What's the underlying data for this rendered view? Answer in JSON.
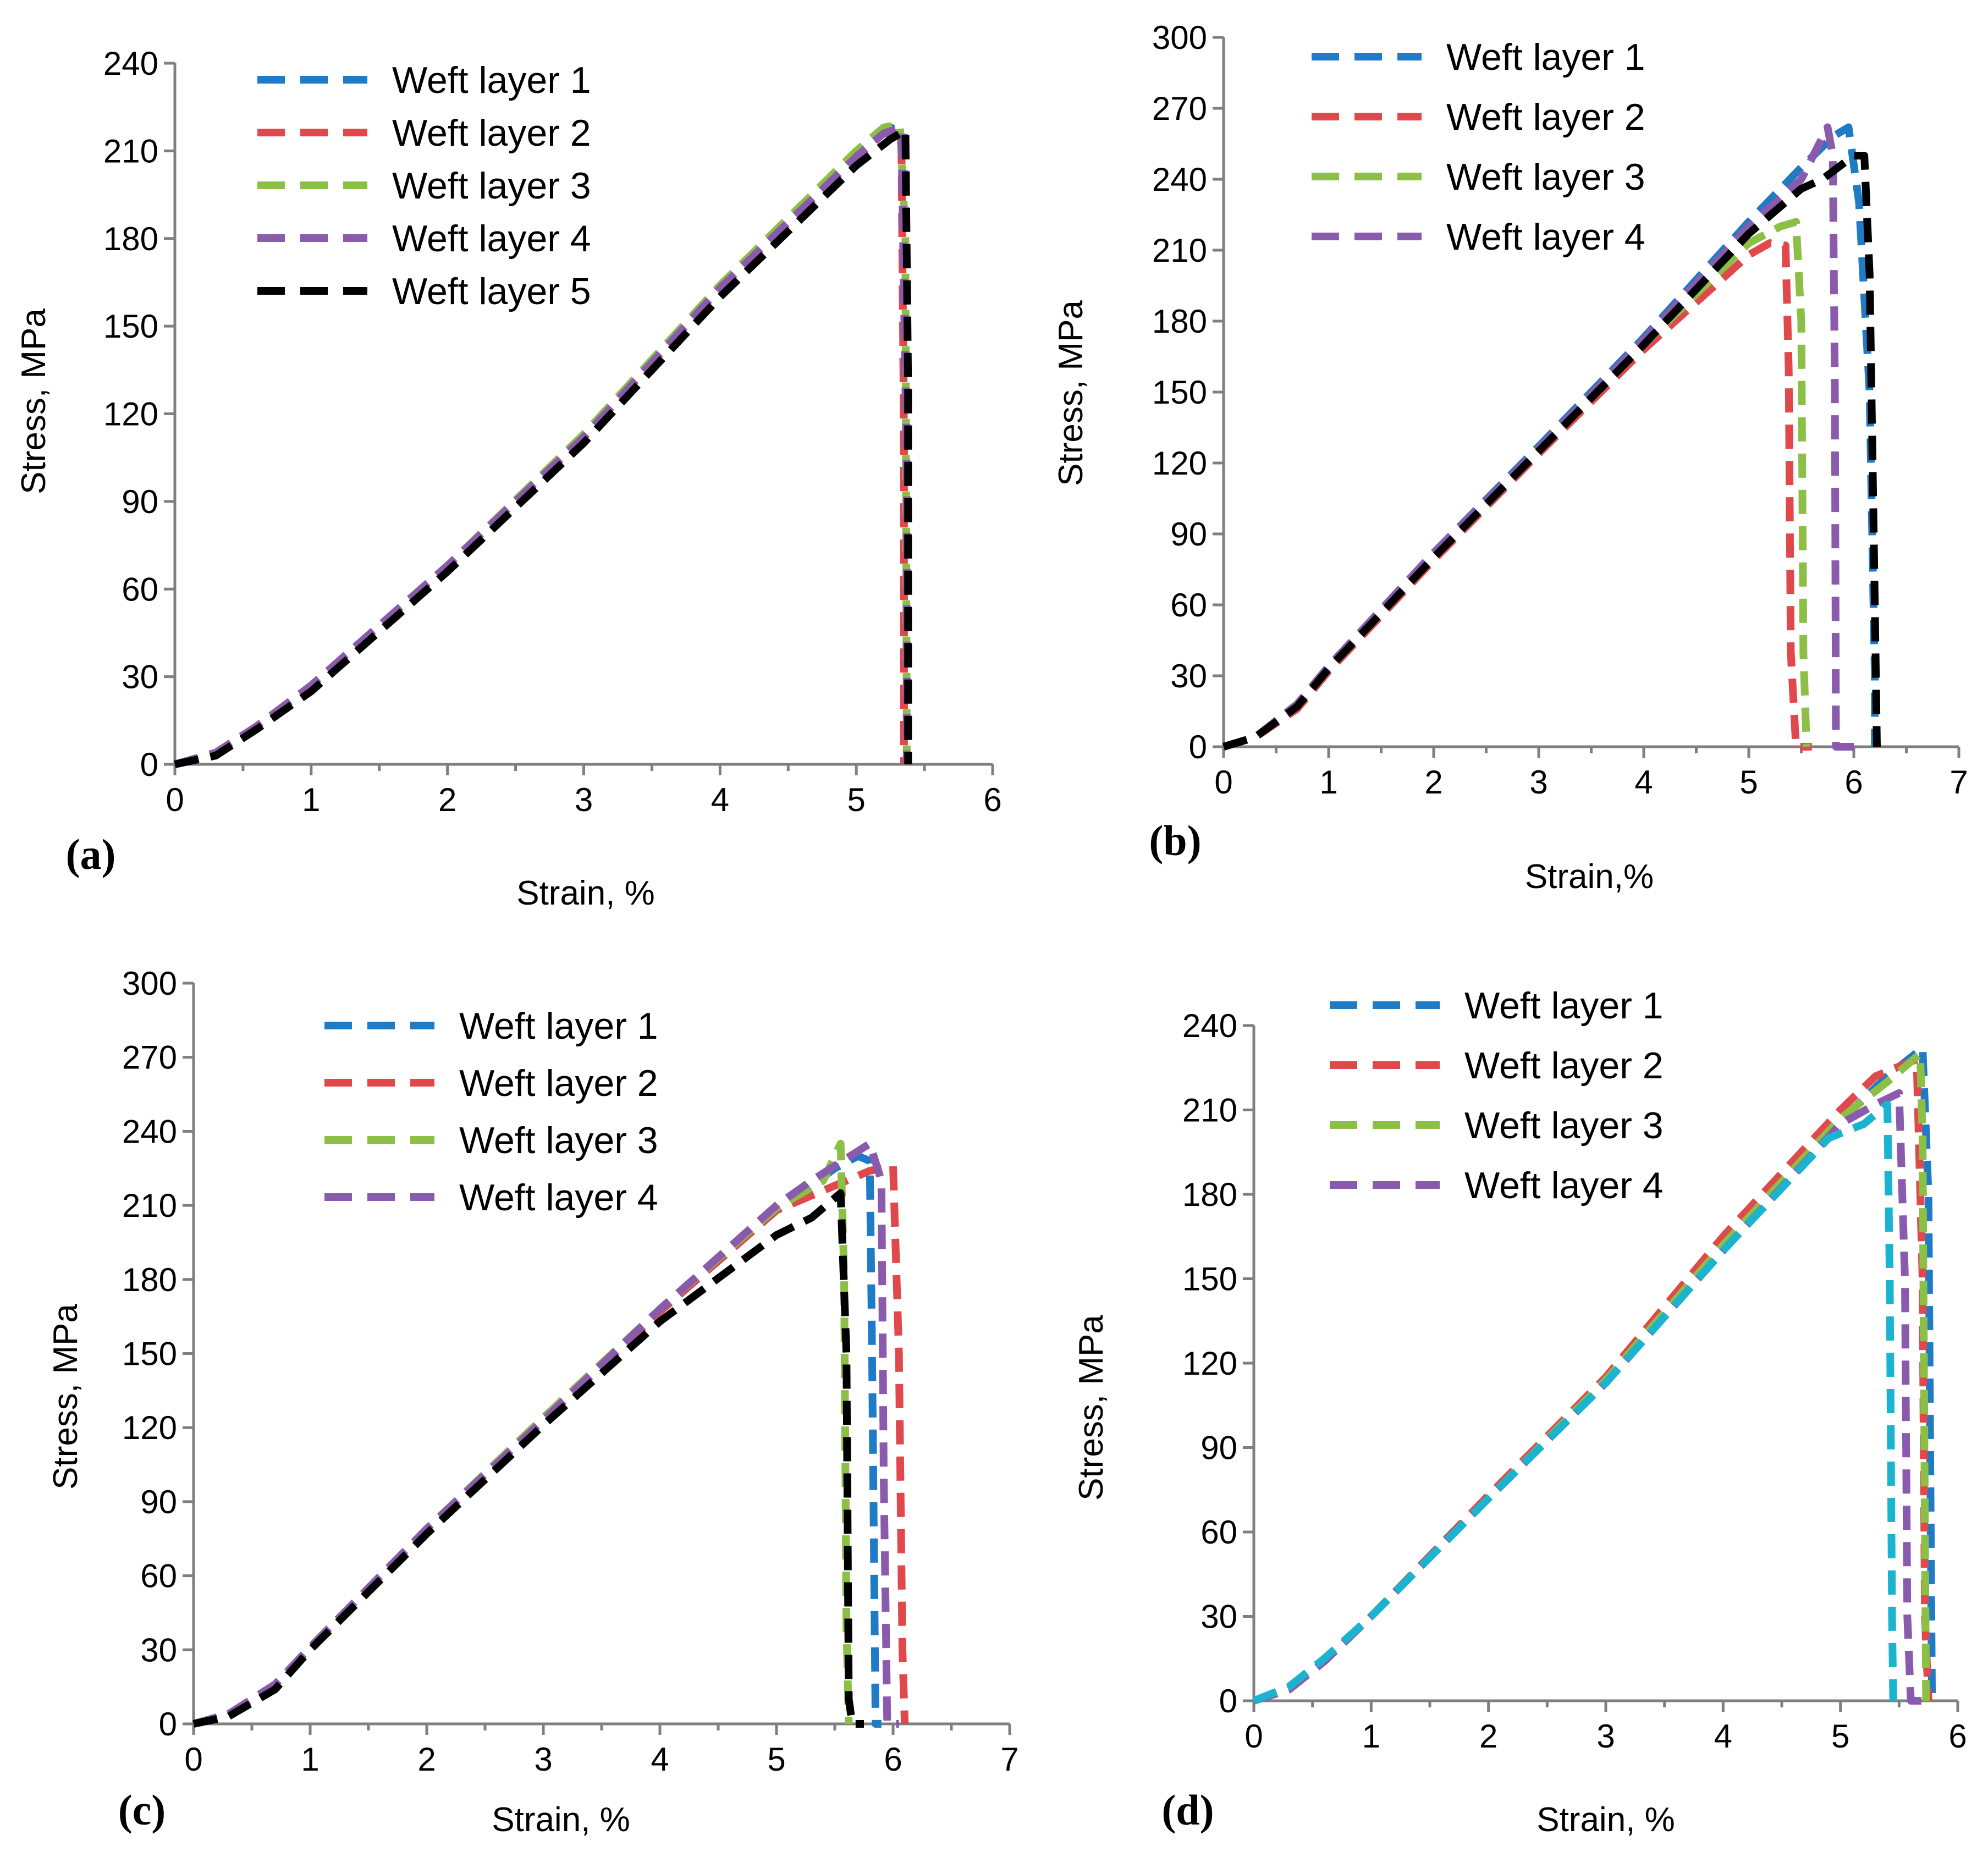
{
  "colors": {
    "weft1": "#1f7bc6",
    "weft2": "#e0484c",
    "weft3": "#8bbf45",
    "weft4": "#8a5aad",
    "weft5": "#000000",
    "cyan": "#1ab4d0",
    "axis": "#7f7f7f"
  },
  "chart_data": [
    {
      "type": "line",
      "panel_label": "(a)",
      "xlabel": "Strain, %",
      "ylabel": "Stress, MPa",
      "xlim": [
        0,
        6
      ],
      "ylim": [
        0,
        240
      ],
      "xticks": [
        "0",
        "1",
        "2",
        "3",
        "4",
        "5",
        "6"
      ],
      "yticks": [
        "0",
        "30",
        "60",
        "90",
        "120",
        "150",
        "180",
        "210",
        "240"
      ],
      "legend_placement": "top-left",
      "series": [
        {
          "name": "Weft layer 1",
          "color": "#1f7bc6",
          "x": [
            0,
            0.3,
            0.6,
            1,
            2,
            3,
            4,
            5,
            5.25,
            5.35,
            5.37,
            5.37
          ],
          "y": [
            0,
            4,
            13,
            27,
            68,
            112,
            163,
            209,
            218,
            216,
            120,
            0
          ]
        },
        {
          "name": "Weft layer 2",
          "color": "#e0484c",
          "x": [
            0,
            0.3,
            0.6,
            1,
            2,
            3,
            4,
            5,
            5.2,
            5.33,
            5.35,
            5.35
          ],
          "y": [
            0,
            4,
            13,
            27,
            68,
            112,
            163,
            208,
            216,
            216,
            110,
            0
          ]
        },
        {
          "name": "Weft layer 3",
          "color": "#8bbf45",
          "x": [
            0,
            0.3,
            0.6,
            1,
            2,
            3,
            4,
            5,
            5.2,
            5.32,
            5.36,
            5.37
          ],
          "y": [
            0,
            4,
            13,
            27,
            68,
            113,
            164,
            210,
            218,
            219,
            180,
            0
          ]
        },
        {
          "name": "Weft layer 4",
          "color": "#8a5aad",
          "x": [
            0,
            0.3,
            0.6,
            1,
            2,
            3,
            4,
            5,
            5.2,
            5.33,
            5.37,
            5.37
          ],
          "y": [
            0,
            4,
            13,
            27,
            68,
            112,
            163,
            208,
            216,
            218,
            100,
            0
          ]
        },
        {
          "name": "Weft layer 5",
          "color": "#000000",
          "x": [
            0,
            0.3,
            0.6,
            1,
            2,
            3,
            4,
            5,
            5.25,
            5.36,
            5.38,
            5.38
          ],
          "y": [
            0,
            3,
            12,
            25,
            66,
            110,
            160,
            205,
            214,
            217,
            130,
            0
          ]
        }
      ]
    },
    {
      "type": "line",
      "panel_label": "(b)",
      "xlabel": "Strain,%",
      "ylabel": "Stress, MPa",
      "xlim": [
        0,
        7
      ],
      "ylim": [
        0,
        300
      ],
      "xticks": [
        "0",
        "1",
        "2",
        "3",
        "4",
        "5",
        "6",
        "7"
      ],
      "yticks": [
        "0",
        "30",
        "60",
        "90",
        "120",
        "150",
        "180",
        "210",
        "240",
        "270",
        "300"
      ],
      "legend_placement": "top-left",
      "series": [
        {
          "name": "Weft layer 1",
          "color": "#1f7bc6",
          "x": [
            0,
            0.3,
            0.7,
            1,
            2,
            3,
            4,
            5,
            5.5,
            5.8,
            5.95,
            6.05,
            6.15,
            6.2,
            6.2
          ],
          "y": [
            0,
            4,
            18,
            34,
            82,
            127,
            173,
            222,
            245,
            258,
            262,
            230,
            150,
            30,
            0
          ]
        },
        {
          "name": "Weft layer 2",
          "color": "#e0484c",
          "x": [
            0,
            0.3,
            0.7,
            1,
            2,
            3,
            4,
            5,
            5.2,
            5.35,
            5.38,
            5.4,
            5.45,
            5.6
          ],
          "y": [
            0,
            4,
            16,
            32,
            79,
            124,
            168,
            208,
            213,
            212,
            160,
            40,
            0,
            0
          ]
        },
        {
          "name": "Weft layer 3",
          "color": "#8bbf45",
          "x": [
            0,
            0.3,
            0.7,
            1,
            2,
            3,
            4,
            5,
            5.3,
            5.45,
            5.5,
            5.52,
            5.55
          ],
          "y": [
            0,
            4,
            17,
            33,
            80,
            125,
            170,
            213,
            220,
            222,
            180,
            40,
            0
          ]
        },
        {
          "name": "Weft layer 4",
          "color": "#8a5aad",
          "x": [
            0,
            0.3,
            0.7,
            1,
            2,
            3,
            4,
            5,
            5.5,
            5.75,
            5.8,
            5.82,
            5.83,
            5.9,
            6.0
          ],
          "y": [
            0,
            4,
            18,
            34,
            82,
            126,
            172,
            220,
            240,
            262,
            250,
            150,
            0,
            0,
            0
          ]
        },
        {
          "name": "",
          "color": "#000000",
          "x": [
            0,
            0.3,
            0.7,
            1,
            2,
            3,
            4,
            5,
            5.5,
            5.7,
            6.0,
            6.1,
            6.15,
            6.2,
            6.22
          ],
          "y": [
            0,
            4,
            17,
            33,
            80,
            125,
            170,
            217,
            236,
            240,
            250,
            250,
            200,
            60,
            0
          ]
        }
      ]
    },
    {
      "type": "line",
      "panel_label": "(c)",
      "xlabel": "Strain, %",
      "ylabel": "Stress, MPa",
      "xlim": [
        0,
        7
      ],
      "ylim": [
        0,
        300
      ],
      "xticks": [
        "0",
        "1",
        "2",
        "3",
        "4",
        "5",
        "6",
        "7"
      ],
      "yticks": [
        "0",
        "30",
        "60",
        "90",
        "120",
        "150",
        "180",
        "210",
        "240",
        "270",
        "300"
      ],
      "legend_placement": "top-center",
      "series": [
        {
          "name": "Weft layer 1",
          "color": "#1f7bc6",
          "x": [
            0,
            0.3,
            0.7,
            1,
            2,
            3,
            4,
            5,
            5.5,
            5.7,
            5.8,
            5.82,
            5.85,
            5.9
          ],
          "y": [
            0,
            4,
            16,
            31,
            79,
            123,
            167,
            208,
            225,
            230,
            228,
            150,
            0,
            0
          ]
        },
        {
          "name": "Weft layer 2",
          "color": "#e0484c",
          "x": [
            0,
            0.3,
            0.7,
            1,
            2,
            3,
            4,
            5,
            5.5,
            5.8,
            6.0,
            6.05,
            6.08,
            6.1
          ],
          "y": [
            0,
            4,
            16,
            31,
            79,
            123,
            167,
            208,
            218,
            224,
            226,
            150,
            30,
            0
          ]
        },
        {
          "name": "Weft layer 3",
          "color": "#8bbf45",
          "x": [
            0,
            0.3,
            0.7,
            1,
            2,
            3,
            4,
            5,
            5.4,
            5.55,
            5.58,
            5.6,
            5.62
          ],
          "y": [
            0,
            4,
            16,
            31,
            79,
            124,
            168,
            209,
            220,
            235,
            180,
            40,
            0
          ]
        },
        {
          "name": "Weft layer 4",
          "color": "#8a5aad",
          "x": [
            0,
            0.3,
            0.7,
            1,
            2,
            3,
            4,
            5,
            5.3,
            5.8,
            5.9,
            5.92,
            5.95,
            6.05
          ],
          "y": [
            0,
            4,
            16,
            31,
            79,
            123,
            168,
            210,
            220,
            235,
            220,
            100,
            0,
            0
          ]
        },
        {
          "name": "",
          "color": "#000000",
          "x": [
            0,
            0.3,
            0.7,
            1,
            2,
            3,
            4,
            5,
            5.3,
            5.55,
            5.6,
            5.62,
            5.65,
            5.75
          ],
          "y": [
            0,
            3,
            14,
            30,
            77,
            121,
            163,
            198,
            205,
            215,
            150,
            10,
            0,
            0
          ]
        }
      ]
    },
    {
      "type": "line",
      "panel_label": "(d)",
      "xlabel": "Strain, %",
      "ylabel": "Stress, MPa",
      "xlim": [
        0,
        6
      ],
      "ylim": [
        0,
        240
      ],
      "xticks": [
        "0",
        "1",
        "2",
        "3",
        "4",
        "5",
        "6"
      ],
      "yticks": [
        "0",
        "30",
        "60",
        "90",
        "120",
        "150",
        "180",
        "210",
        "240"
      ],
      "legend_placement": "top-left",
      "series": [
        {
          "name": "Weft layer 1",
          "color": "#1f7bc6",
          "x": [
            0,
            0.3,
            0.6,
            1,
            2,
            3,
            4,
            5,
            5.4,
            5.7,
            5.75,
            5.77,
            5.78
          ],
          "y": [
            0,
            4,
            14,
            30,
            72,
            113,
            160,
            206,
            222,
            232,
            180,
            60,
            0
          ]
        },
        {
          "name": "Weft layer 2",
          "color": "#e0484c",
          "x": [
            0,
            0.3,
            0.6,
            1,
            2,
            3,
            4,
            5,
            5.3,
            5.65,
            5.7,
            5.72,
            5.75
          ],
          "y": [
            0,
            4,
            14,
            30,
            73,
            115,
            165,
            210,
            222,
            228,
            150,
            30,
            0
          ]
        },
        {
          "name": "Weft layer 3",
          "color": "#8bbf45",
          "x": [
            0,
            0.3,
            0.6,
            1,
            2,
            3,
            4,
            5,
            5.4,
            5.68,
            5.7,
            5.72,
            5.73
          ],
          "y": [
            0,
            4,
            14,
            30,
            72,
            114,
            162,
            207,
            220,
            230,
            200,
            60,
            0
          ]
        },
        {
          "name": "Weft layer 4",
          "color": "#8a5aad",
          "x": [
            0,
            0.3,
            0.6,
            1,
            2,
            3,
            4,
            5,
            5.3,
            5.5,
            5.55,
            5.57,
            5.6,
            5.75
          ],
          "y": [
            0,
            4,
            14,
            30,
            72,
            113,
            160,
            205,
            212,
            216,
            150,
            30,
            0,
            0
          ]
        },
        {
          "name": "",
          "color": "#1ab4d0",
          "x": [
            0,
            0.3,
            0.6,
            1,
            2,
            3,
            4,
            4.9,
            5.2,
            5.4,
            5.42,
            5.44,
            5.45
          ],
          "y": [
            0,
            5,
            15,
            30,
            72,
            113,
            160,
            200,
            205,
            212,
            150,
            30,
            0
          ]
        }
      ]
    }
  ]
}
